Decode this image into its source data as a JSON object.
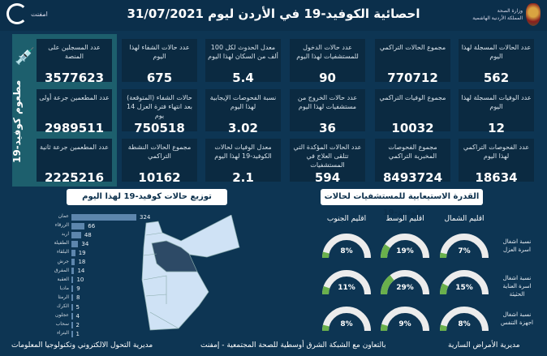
{
  "header": {
    "title": "احصائية الكوفيد-19 في الأردن ليوم  31/07/2021",
    "ministry_line1": "وزارة الصحة",
    "ministry_line2": "المملكة الأردنية الهاشمية",
    "partner_name": "امفنت"
  },
  "vaccine": {
    "title": "مطعوم كوفيد-19",
    "icon": "syringe-icon",
    "cards": [
      {
        "label": "عدد المسجلين على المنصة",
        "value": "3577623"
      },
      {
        "label": "عدد المطعمين جرعة أولى",
        "value": "2989511"
      },
      {
        "label": "عدد المطعمين جرعة ثانية",
        "value": "2225216"
      }
    ]
  },
  "stats": [
    [
      {
        "label": "عدد الحالات المسجلة لهذا اليوم",
        "value": "562"
      },
      {
        "label": "مجموع الحالات التراكمي",
        "value": "770712"
      },
      {
        "label": "عدد حالات الدخول للمستشفيات لهذا اليوم",
        "value": "90"
      },
      {
        "label": "معدل الحدوث لكل 100 ألف من السكان لهذا اليوم",
        "value": "5.4"
      },
      {
        "label": "عدد حالات الشفاء لهذا اليوم",
        "value": "675"
      }
    ],
    [
      {
        "label": "عدد الوفيات المسجلة لهذا اليوم",
        "value": "12"
      },
      {
        "label": "مجموع الوفيات التراكمي",
        "value": "10032"
      },
      {
        "label": "عدد حالات الخروج من مستشفيات لهذا اليوم",
        "value": "36"
      },
      {
        "label": "نسبة الفحوصات الإيجابية لهذا اليوم",
        "value": "3.02"
      },
      {
        "label": "حالات الشفاء (المتوقعة) بعد انتهاء فترة العزل 14 يوم",
        "value": "750518"
      }
    ],
    [
      {
        "label": "عدد الفحوصات التراكمي لهذا اليوم",
        "value": "18634"
      },
      {
        "label": "مجموع الفحوصات المخبرية التراكمي",
        "value": "8493724"
      },
      {
        "label": "عدد الحالات المؤكدة التي تتلقى العلاج في المستشفيات",
        "value": "594"
      },
      {
        "label": "معدل الوفيات لحالات الكوفيد-19 لهذا اليوم",
        "value": "2.1"
      },
      {
        "label": "مجموع الحالات النشطة التراكمي",
        "value": "10162"
      }
    ]
  ],
  "distribution": {
    "title": "توزيع حالات كوفيد-19 لهذا اليوم",
    "bar_color": "#5d86ad",
    "highlight_color": "#2d4a66",
    "map_color": "#cfe2f5",
    "chart_data": {
      "type": "bar",
      "orientation": "horizontal",
      "categories": [
        "عمان",
        "الزرقاء",
        "اربد",
        "الطفيلة",
        "البلقاء",
        "جرش",
        "المفرق",
        "العقبة",
        "مادبا",
        "الرمثا",
        "الكرك",
        "عجلون",
        "سحاب",
        "البتراء"
      ],
      "values": [
        324,
        66,
        48,
        34,
        19,
        18,
        14,
        10,
        9,
        8,
        5,
        4,
        2,
        1
      ]
    }
  },
  "capacity": {
    "title": "القدرة الاستيعابية للمستشفيات لحالات كوفيد-19",
    "fill_color": "#6ab04c",
    "track_color": "#ececec",
    "regions": [
      "اقليم الشمال",
      "اقليم الوسط",
      "اقليم الجنوب"
    ],
    "rows": [
      {
        "label": "نسبة اشغال اسرة العزل",
        "values": [
          7,
          19,
          8
        ]
      },
      {
        "label": "نسبة اشغال اسرة العناية الحثيثة",
        "values": [
          15,
          29,
          11
        ]
      },
      {
        "label": "نسبة اشغال اجهزة التنفس",
        "values": [
          8,
          9,
          8
        ]
      }
    ]
  },
  "footer": {
    "left": "مديرية التحول الالكتروني وتكنولوجيا المعلومات",
    "center": "بالتعاون مع الشبكة الشرق أوسطية للصحة المجتمعية - إمفنت",
    "right": "مديرية الأمراض السارية"
  }
}
